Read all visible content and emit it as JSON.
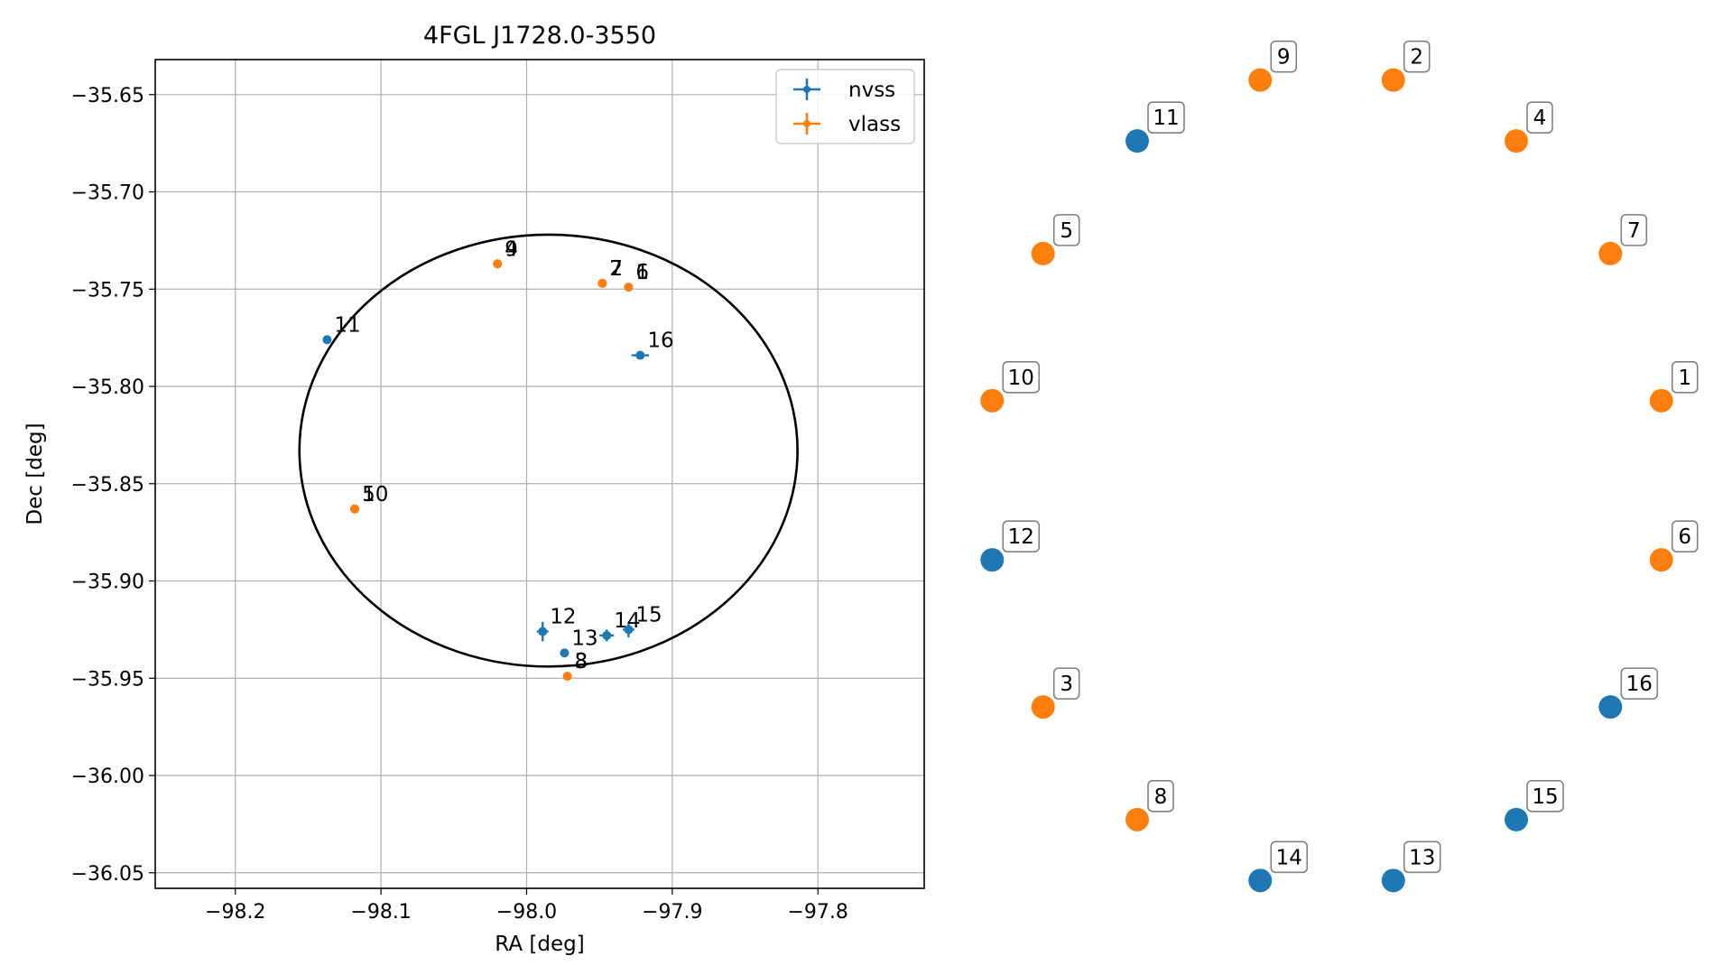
{
  "colors": {
    "nvss": "#1f77b4",
    "vlass": "#ff7f0e",
    "grid": "#b0b0b0",
    "ellipse": "#000000",
    "axes": "#000000",
    "label_box_edge": "#808080"
  },
  "chart_data": [
    {
      "type": "scatter",
      "title": "4FGL J1728.0-3550",
      "xlabel": "RA [deg]",
      "ylabel": "Dec [deg]",
      "xlim": [
        -98.255,
        -97.727
      ],
      "ylim": [
        -36.058,
        -35.632
      ],
      "x_ticks": [
        -98.2,
        -98.1,
        -98.0,
        -97.9,
        -97.8
      ],
      "x_tick_labels": [
        "−98.2",
        "−98.1",
        "−98.0",
        "−97.9",
        "−97.8"
      ],
      "y_ticks": [
        -35.65,
        -35.7,
        -35.75,
        -35.8,
        -35.85,
        -35.9,
        -35.95,
        -36.0,
        -36.05
      ],
      "y_tick_labels": [
        "−35.65",
        "−35.70",
        "−35.75",
        "−35.80",
        "−35.85",
        "−35.90",
        "−35.95",
        "−36.00",
        "−36.05"
      ],
      "grid": true,
      "legend_position": "top-right",
      "legend": [
        {
          "name": "nvss",
          "color_key": "nvss"
        },
        {
          "name": "vlass",
          "color_key": "vlass"
        }
      ],
      "ellipse": {
        "ra_center": -97.985,
        "dec_center": -35.833,
        "ra_semi_axis": 0.171,
        "dec_semi_axis": 0.111
      },
      "series": [
        {
          "name": "nvss",
          "points": [
            {
              "id": "11",
              "ra": -98.137,
              "dec": -35.776,
              "ra_err": 0.0,
              "dec_err": 0.0
            },
            {
              "id": "16",
              "ra": -97.922,
              "dec": -35.784,
              "ra_err": 0.006,
              "dec_err": 0.002
            },
            {
              "id": "12",
              "ra": -97.989,
              "dec": -35.926,
              "ra_err": 0.004,
              "dec_err": 0.005
            },
            {
              "id": "13",
              "ra": -97.974,
              "dec": -35.937,
              "ra_err": 0.0,
              "dec_err": 0.0
            },
            {
              "id": "14",
              "ra": -97.945,
              "dec": -35.928,
              "ra_err": 0.005,
              "dec_err": 0.003
            },
            {
              "id": "15",
              "ra": -97.93,
              "dec": -35.925,
              "ra_err": 0.004,
              "dec_err": 0.004
            }
          ]
        },
        {
          "name": "vlass",
          "points": [
            {
              "id": "9",
              "ra": -98.02,
              "dec": -35.737,
              "ra_err": 0.0,
              "dec_err": 0.0
            },
            {
              "id": "4",
              "ra": -98.02,
              "dec": -35.737,
              "ra_err": 0.0,
              "dec_err": 0.0
            },
            {
              "id": "2",
              "ra": -97.948,
              "dec": -35.747,
              "ra_err": 0.0,
              "dec_err": 0.0
            },
            {
              "id": "7",
              "ra": -97.948,
              "dec": -35.747,
              "ra_err": 0.0,
              "dec_err": 0.0
            },
            {
              "id": "1",
              "ra": -97.93,
              "dec": -35.749,
              "ra_err": 0.0,
              "dec_err": 0.0
            },
            {
              "id": "6",
              "ra": -97.93,
              "dec": -35.749,
              "ra_err": 0.0,
              "dec_err": 0.0
            },
            {
              "id": "5",
              "ra": -98.118,
              "dec": -35.863,
              "ra_err": 0.0,
              "dec_err": 0.0
            },
            {
              "id": "10",
              "ra": -98.118,
              "dec": -35.863,
              "ra_err": 0.0,
              "dec_err": 0.0
            },
            {
              "id": "3",
              "ra": -97.972,
              "dec": -35.949,
              "ra_err": 0.0,
              "dec_err": 0.0
            },
            {
              "id": "8",
              "ra": -97.972,
              "dec": -35.949,
              "ra_err": 0.0,
              "dec_err": 0.0
            }
          ]
        }
      ],
      "point_labels": [
        {
          "text": "9"
        },
        {
          "text": "4"
        },
        {
          "text": "2"
        },
        {
          "text": "7"
        },
        {
          "text": "1"
        },
        {
          "text": "6"
        },
        {
          "text": "11"
        },
        {
          "text": "16"
        },
        {
          "text": "5"
        },
        {
          "text": "10"
        },
        {
          "text": "12"
        },
        {
          "text": "13"
        },
        {
          "text": "14"
        },
        {
          "text": "15"
        },
        {
          "text": "3"
        },
        {
          "text": "8"
        }
      ]
    },
    {
      "type": "scatter",
      "title": "",
      "grid": false,
      "axes_visible": false,
      "layout": "circular",
      "nodes": [
        {
          "id": "1",
          "survey": "vlass"
        },
        {
          "id": "6",
          "survey": "vlass"
        },
        {
          "id": "16",
          "survey": "nvss"
        },
        {
          "id": "15",
          "survey": "nvss"
        },
        {
          "id": "13",
          "survey": "nvss"
        },
        {
          "id": "14",
          "survey": "nvss"
        },
        {
          "id": "8",
          "survey": "vlass"
        },
        {
          "id": "3",
          "survey": "vlass"
        },
        {
          "id": "12",
          "survey": "nvss"
        },
        {
          "id": "10",
          "survey": "vlass"
        },
        {
          "id": "5",
          "survey": "vlass"
        },
        {
          "id": "11",
          "survey": "nvss"
        },
        {
          "id": "9",
          "survey": "vlass"
        },
        {
          "id": "2",
          "survey": "vlass"
        },
        {
          "id": "4",
          "survey": "vlass"
        },
        {
          "id": "7",
          "survey": "vlass"
        }
      ]
    }
  ]
}
